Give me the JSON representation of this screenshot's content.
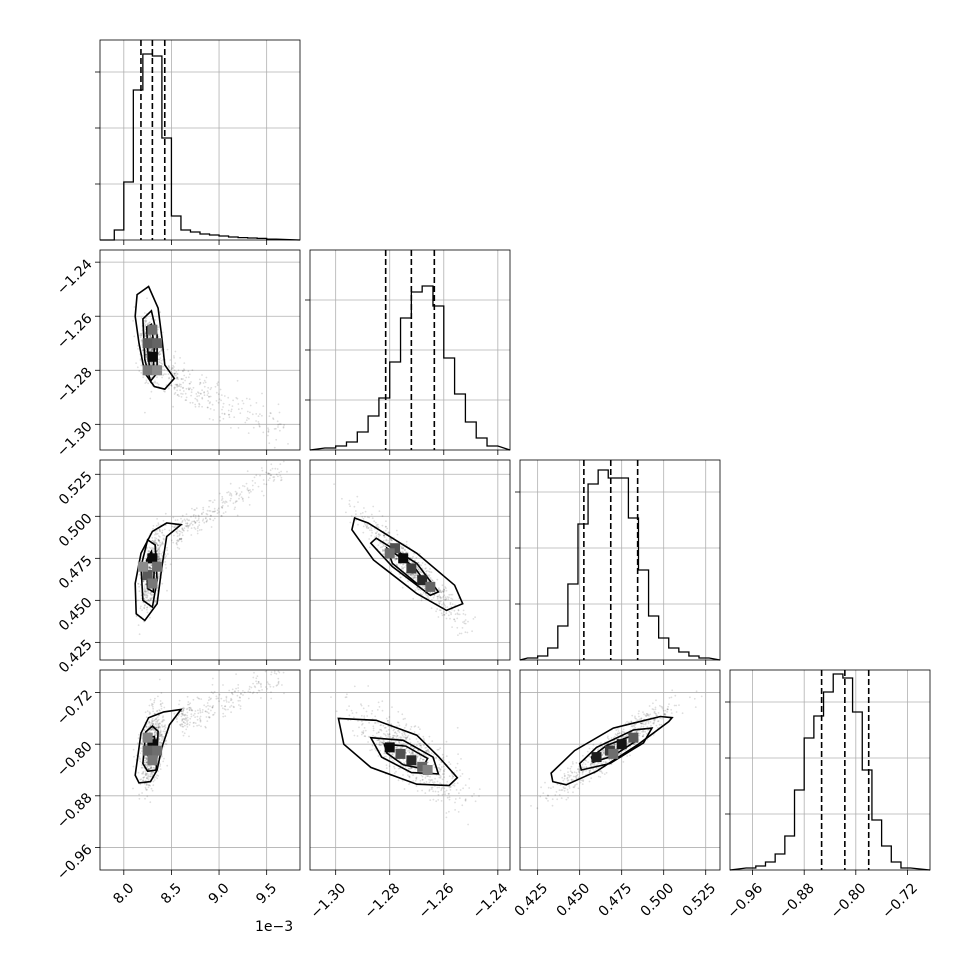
{
  "chart_data": {
    "type": "corner",
    "offset_label": "1e−3",
    "params": [
      {
        "ticks": [
          8.0,
          8.5,
          9.0,
          9.5
        ],
        "tick_labels": [
          "8.0",
          "8.5",
          "9.0",
          "9.5"
        ],
        "hist_ticks": [
          0.28,
          0.56,
          0.84
        ],
        "range": [
          7.75,
          9.85
        ],
        "quantiles": [
          8.18,
          8.3,
          8.43
        ],
        "hist_bins": [
          7.8,
          7.9,
          8.0,
          8.1,
          8.2,
          8.3,
          8.4,
          8.5,
          8.6,
          8.7,
          8.8,
          8.9,
          9.0,
          9.1,
          9.2,
          9.3,
          9.4,
          9.5,
          9.6
        ],
        "hist_counts": [
          0.0,
          0.05,
          0.29,
          0.75,
          0.93,
          0.92,
          0.51,
          0.12,
          0.05,
          0.04,
          0.03,
          0.025,
          0.02,
          0.015,
          0.012,
          0.01,
          0.008,
          0.004,
          0.0
        ]
      },
      {
        "ticks": [
          -1.3,
          -1.28,
          -1.26,
          -1.24
        ],
        "tick_labels": [
          "−1.30",
          "−1.28",
          "−1.26",
          "−1.24"
        ],
        "hist_ticks": [
          0.25,
          0.5,
          0.75
        ],
        "range": [
          -1.3095,
          -1.2355
        ],
        "quantiles": [
          -1.2815,
          -1.272,
          -1.2635
        ],
        "hist_bins": [
          -1.304,
          -1.3,
          -1.296,
          -1.292,
          -1.288,
          -1.284,
          -1.28,
          -1.276,
          -1.272,
          -1.268,
          -1.264,
          -1.26,
          -1.256,
          -1.252,
          -1.248,
          -1.244,
          -1.24
        ],
        "hist_counts": [
          0.01,
          0.02,
          0.04,
          0.09,
          0.17,
          0.26,
          0.44,
          0.66,
          0.79,
          0.82,
          0.72,
          0.46,
          0.28,
          0.14,
          0.06,
          0.02,
          0.0
        ]
      },
      {
        "ticks": [
          0.425,
          0.45,
          0.475,
          0.5,
          0.525
        ],
        "tick_labels": [
          "0.425",
          "0.450",
          "0.475",
          "0.500",
          "0.525"
        ],
        "hist_ticks": [
          0.28,
          0.56,
          0.84
        ],
        "range": [
          0.4145,
          0.5335
        ],
        "quantiles": [
          0.4525,
          0.4685,
          0.4845
        ],
        "hist_bins": [
          0.419,
          0.425,
          0.431,
          0.437,
          0.443,
          0.449,
          0.455,
          0.461,
          0.467,
          0.473,
          0.479,
          0.485,
          0.491,
          0.497,
          0.503,
          0.509,
          0.515,
          0.521,
          0.527
        ],
        "hist_counts": [
          0.01,
          0.02,
          0.06,
          0.17,
          0.38,
          0.68,
          0.88,
          0.95,
          0.91,
          0.91,
          0.71,
          0.45,
          0.22,
          0.11,
          0.06,
          0.04,
          0.02,
          0.01,
          0.0
        ]
      },
      {
        "ticks": [
          -0.96,
          -0.88,
          -0.8,
          -0.72
        ],
        "tick_labels": [
          "−0.96",
          "−0.88",
          "−0.80",
          "−0.72"
        ],
        "hist_ticks": [
          0.28,
          0.56,
          0.84
        ],
        "range": [
          -0.995,
          -0.685
        ],
        "quantiles": [
          -0.853,
          -0.817,
          -0.78
        ],
        "hist_bins": [
          -0.97,
          -0.955,
          -0.94,
          -0.925,
          -0.91,
          -0.895,
          -0.88,
          -0.865,
          -0.85,
          -0.835,
          -0.82,
          -0.805,
          -0.79,
          -0.775,
          -0.76,
          -0.745,
          -0.73,
          -0.715
        ],
        "hist_counts": [
          0.01,
          0.02,
          0.04,
          0.08,
          0.17,
          0.4,
          0.66,
          0.77,
          0.89,
          0.98,
          0.96,
          0.79,
          0.5,
          0.25,
          0.12,
          0.04,
          0.01,
          0.0
        ]
      }
    ],
    "pairs": [
      {
        "x": 0,
        "y": 1,
        "center": [
          8.29,
          -1.273
        ],
        "spread": [
          0.055,
          0.0055
        ],
        "corr": -0.3,
        "tail": {
          "start": [
            8.5,
            -1.283
          ],
          "end": [
            9.7,
            -1.303
          ],
          "spread": [
            0.1,
            0.004
          ]
        },
        "contours": [
          [
            [
              8.14,
              -1.252
            ],
            [
              8.26,
              -1.249
            ],
            [
              8.36,
              -1.257
            ],
            [
              8.4,
              -1.268
            ],
            [
              8.43,
              -1.278
            ],
            [
              8.53,
              -1.283
            ],
            [
              8.43,
              -1.287
            ],
            [
              8.32,
              -1.286
            ],
            [
              8.22,
              -1.281
            ],
            [
              8.16,
              -1.27
            ],
            [
              8.12,
              -1.26
            ]
          ],
          [
            [
              8.2,
              -1.261
            ],
            [
              8.29,
              -1.258
            ],
            [
              8.35,
              -1.267
            ],
            [
              8.35,
              -1.281
            ],
            [
              8.28,
              -1.284
            ],
            [
              8.22,
              -1.276
            ]
          ],
          [
            [
              8.24,
              -1.264
            ],
            [
              8.29,
              -1.263
            ],
            [
              8.32,
              -1.272
            ],
            [
              8.31,
              -1.279
            ],
            [
              8.27,
              -1.279
            ],
            [
              8.25,
              -1.272
            ]
          ]
        ],
        "cells": [
          [
            8.3,
            -1.275,
            0.95
          ],
          [
            8.25,
            -1.27,
            0.55
          ],
          [
            8.35,
            -1.27,
            0.5
          ],
          [
            8.3,
            -1.265,
            0.45
          ],
          [
            8.25,
            -1.28,
            0.4
          ],
          [
            8.35,
            -1.28,
            0.3
          ]
        ]
      },
      {
        "x": 0,
        "y": 2,
        "center": [
          8.3,
          0.468
        ],
        "spread": [
          0.06,
          0.011
        ],
        "corr": 0.55,
        "tail": {
          "start": [
            8.55,
            0.49
          ],
          "end": [
            9.7,
            0.53
          ],
          "spread": [
            0.1,
            0.004
          ]
        },
        "contours": [
          [
            [
              8.13,
              0.442
            ],
            [
              8.22,
              0.438
            ],
            [
              8.35,
              0.448
            ],
            [
              8.4,
              0.47
            ],
            [
              8.45,
              0.488
            ],
            [
              8.6,
              0.495
            ],
            [
              8.45,
              0.496
            ],
            [
              8.3,
              0.491
            ],
            [
              8.18,
              0.478
            ],
            [
              8.12,
              0.46
            ]
          ],
          [
            [
              8.2,
              0.45
            ],
            [
              8.3,
              0.446
            ],
            [
              8.35,
              0.462
            ],
            [
              8.33,
              0.483
            ],
            [
              8.25,
              0.486
            ],
            [
              8.18,
              0.47
            ]
          ],
          [
            [
              8.25,
              0.457
            ],
            [
              8.31,
              0.455
            ],
            [
              8.32,
              0.47
            ],
            [
              8.29,
              0.479
            ],
            [
              8.24,
              0.474
            ]
          ]
        ],
        "cells": [
          [
            8.3,
            0.475,
            0.95
          ],
          [
            8.25,
            0.465,
            0.55
          ],
          [
            8.35,
            0.47,
            0.45
          ],
          [
            8.3,
            0.46,
            0.4
          ],
          [
            8.2,
            0.47,
            0.3
          ]
        ]
      },
      {
        "x": 1,
        "y": 2,
        "center": [
          -1.272,
          0.469
        ],
        "spread": [
          0.0095,
          0.016
        ],
        "corr": -0.95,
        "tail": null,
        "contours": [
          [
            [
              -1.293,
              0.499
            ],
            [
              -1.288,
              0.496
            ],
            [
              -1.27,
              0.478
            ],
            [
              -1.256,
              0.459
            ],
            [
              -1.253,
              0.448
            ],
            [
              -1.259,
              0.444
            ],
            [
              -1.27,
              0.454
            ],
            [
              -1.286,
              0.474
            ],
            [
              -1.294,
              0.492
            ]
          ],
          [
            [
              -1.285,
              0.487
            ],
            [
              -1.27,
              0.472
            ],
            [
              -1.262,
              0.455
            ],
            [
              -1.265,
              0.453
            ],
            [
              -1.279,
              0.47
            ],
            [
              -1.287,
              0.484
            ]
          ],
          [
            [
              -1.281,
              0.481
            ],
            [
              -1.271,
              0.47
            ],
            [
              -1.267,
              0.461
            ],
            [
              -1.27,
              0.46
            ],
            [
              -1.279,
              0.472
            ]
          ]
        ],
        "cells": [
          [
            -1.278,
            0.481,
            0.6
          ],
          [
            -1.275,
            0.475,
            0.95
          ],
          [
            -1.272,
            0.469,
            0.7
          ],
          [
            -1.268,
            0.462,
            0.8
          ],
          [
            -1.265,
            0.458,
            0.5
          ],
          [
            -1.28,
            0.478,
            0.45
          ]
        ]
      },
      {
        "x": 0,
        "y": 3,
        "center": [
          8.3,
          -0.805
        ],
        "spread": [
          0.065,
          0.03
        ],
        "corr": 0.4,
        "tail": {
          "start": [
            8.6,
            -0.76
          ],
          "end": [
            9.7,
            -0.69
          ],
          "spread": [
            0.1,
            0.012
          ]
        },
        "contours": [
          [
            [
              8.12,
              -0.848
            ],
            [
              8.18,
              -0.783
            ],
            [
              8.26,
              -0.759
            ],
            [
              8.42,
              -0.75
            ],
            [
              8.6,
              -0.746
            ],
            [
              8.48,
              -0.77
            ],
            [
              8.4,
              -0.805
            ],
            [
              8.35,
              -0.84
            ],
            [
              8.28,
              -0.858
            ],
            [
              8.16,
              -0.86
            ]
          ],
          [
            [
              8.2,
              -0.83
            ],
            [
              8.23,
              -0.781
            ],
            [
              8.3,
              -0.772
            ],
            [
              8.36,
              -0.78
            ],
            [
              8.34,
              -0.84
            ],
            [
              8.25,
              -0.842
            ]
          ],
          [
            [
              8.25,
              -0.817
            ],
            [
              8.27,
              -0.789
            ],
            [
              8.32,
              -0.788
            ],
            [
              8.33,
              -0.815
            ],
            [
              8.29,
              -0.826
            ]
          ]
        ],
        "cells": [
          [
            8.3,
            -0.8,
            0.95
          ],
          [
            8.25,
            -0.81,
            0.5
          ],
          [
            8.35,
            -0.81,
            0.45
          ],
          [
            8.3,
            -0.825,
            0.4
          ],
          [
            8.25,
            -0.79,
            0.35
          ]
        ]
      },
      {
        "x": 1,
        "y": 3,
        "center": [
          -1.273,
          -0.815
        ],
        "spread": [
          0.0095,
          0.034
        ],
        "corr": -0.78,
        "tail": null,
        "contours": [
          [
            [
              -1.299,
              -0.76
            ],
            [
              -1.285,
              -0.763
            ],
            [
              -1.27,
              -0.786
            ],
            [
              -1.262,
              -0.819
            ],
            [
              -1.255,
              -0.852
            ],
            [
              -1.258,
              -0.864
            ],
            [
              -1.27,
              -0.862
            ],
            [
              -1.287,
              -0.836
            ],
            [
              -1.297,
              -0.8
            ]
          ],
          [
            [
              -1.287,
              -0.79
            ],
            [
              -1.275,
              -0.794
            ],
            [
              -1.264,
              -0.82
            ],
            [
              -1.262,
              -0.846
            ],
            [
              -1.272,
              -0.844
            ],
            [
              -1.283,
              -0.82
            ]
          ],
          [
            [
              -1.282,
              -0.8
            ],
            [
              -1.274,
              -0.803
            ],
            [
              -1.266,
              -0.822
            ],
            [
              -1.268,
              -0.838
            ],
            [
              -1.275,
              -0.832
            ],
            [
              -1.281,
              -0.814
            ]
          ]
        ],
        "cells": [
          [
            -1.28,
            -0.805,
            0.95
          ],
          [
            -1.276,
            -0.815,
            0.6
          ],
          [
            -1.272,
            -0.825,
            0.8
          ],
          [
            -1.268,
            -0.835,
            0.5
          ],
          [
            -1.266,
            -0.84,
            0.35
          ]
        ]
      },
      {
        "x": 2,
        "y": 3,
        "center": [
          0.471,
          -0.805
        ],
        "spread": [
          0.017,
          0.034
        ],
        "corr": 0.93,
        "tail": null,
        "contours": [
          [
            [
              0.434,
              -0.858
            ],
            [
              0.442,
              -0.863
            ],
            [
              0.46,
              -0.842
            ],
            [
              0.485,
              -0.8
            ],
            [
              0.503,
              -0.765
            ],
            [
              0.505,
              -0.759
            ],
            [
              0.498,
              -0.757
            ],
            [
              0.47,
              -0.775
            ],
            [
              0.447,
              -0.81
            ],
            [
              0.433,
              -0.845
            ]
          ],
          [
            [
              0.451,
              -0.84
            ],
            [
              0.468,
              -0.83
            ],
            [
              0.488,
              -0.798
            ],
            [
              0.493,
              -0.775
            ],
            [
              0.482,
              -0.778
            ],
            [
              0.46,
              -0.805
            ],
            [
              0.45,
              -0.83
            ]
          ],
          [
            [
              0.458,
              -0.828
            ],
            [
              0.47,
              -0.818
            ],
            [
              0.483,
              -0.796
            ],
            [
              0.481,
              -0.787
            ],
            [
              0.466,
              -0.802
            ],
            [
              0.457,
              -0.82
            ]
          ]
        ],
        "cells": [
          [
            0.46,
            -0.82,
            0.85
          ],
          [
            0.468,
            -0.81,
            0.7
          ],
          [
            0.475,
            -0.8,
            0.9
          ],
          [
            0.482,
            -0.79,
            0.55
          ],
          [
            0.47,
            -0.815,
            0.45
          ]
        ]
      }
    ]
  }
}
